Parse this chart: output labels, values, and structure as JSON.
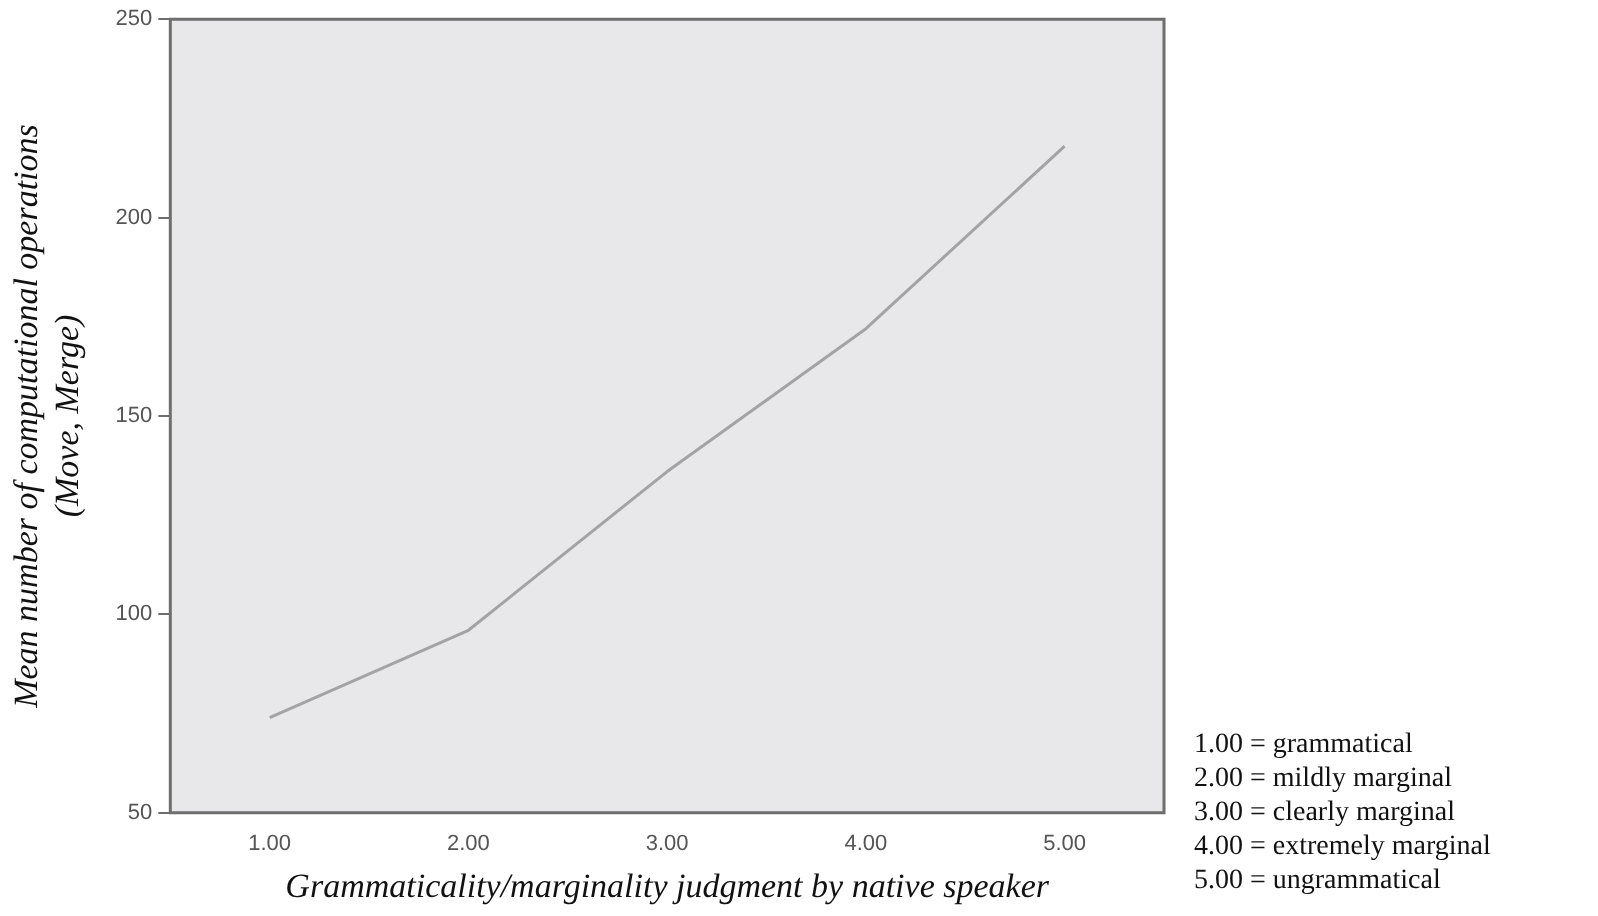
{
  "chart_data": {
    "type": "line",
    "xlabel": "Grammaticality/marginality judgment by native speaker",
    "ylabel": "Mean number of computational operations\n(Move, Merge)",
    "x": [
      1,
      2,
      3,
      4,
      5
    ],
    "series": [
      {
        "color": "#a3a3a3",
        "values": [
          74,
          96,
          136,
          172,
          218
        ]
      }
    ],
    "xlim": [
      0.5,
      5.5
    ],
    "xticks": [
      {
        "value": 1,
        "label": "1.00"
      },
      {
        "value": 2,
        "label": "2.00"
      },
      {
        "value": 3,
        "label": "3.00"
      },
      {
        "value": 4,
        "label": "4.00"
      },
      {
        "value": 5,
        "label": "5.00"
      }
    ],
    "ylim": [
      50,
      250
    ],
    "yticks": [
      50,
      100,
      150,
      200,
      250
    ],
    "grid": false,
    "legend": false,
    "marker": "none",
    "line_style": "solid",
    "annotations": [
      "1.00 = grammatical",
      "2.00 = mildly marginal",
      "3.00 = clearly marginal",
      "4.00 = extremely marginal",
      "5.00 = ungrammatical"
    ]
  }
}
